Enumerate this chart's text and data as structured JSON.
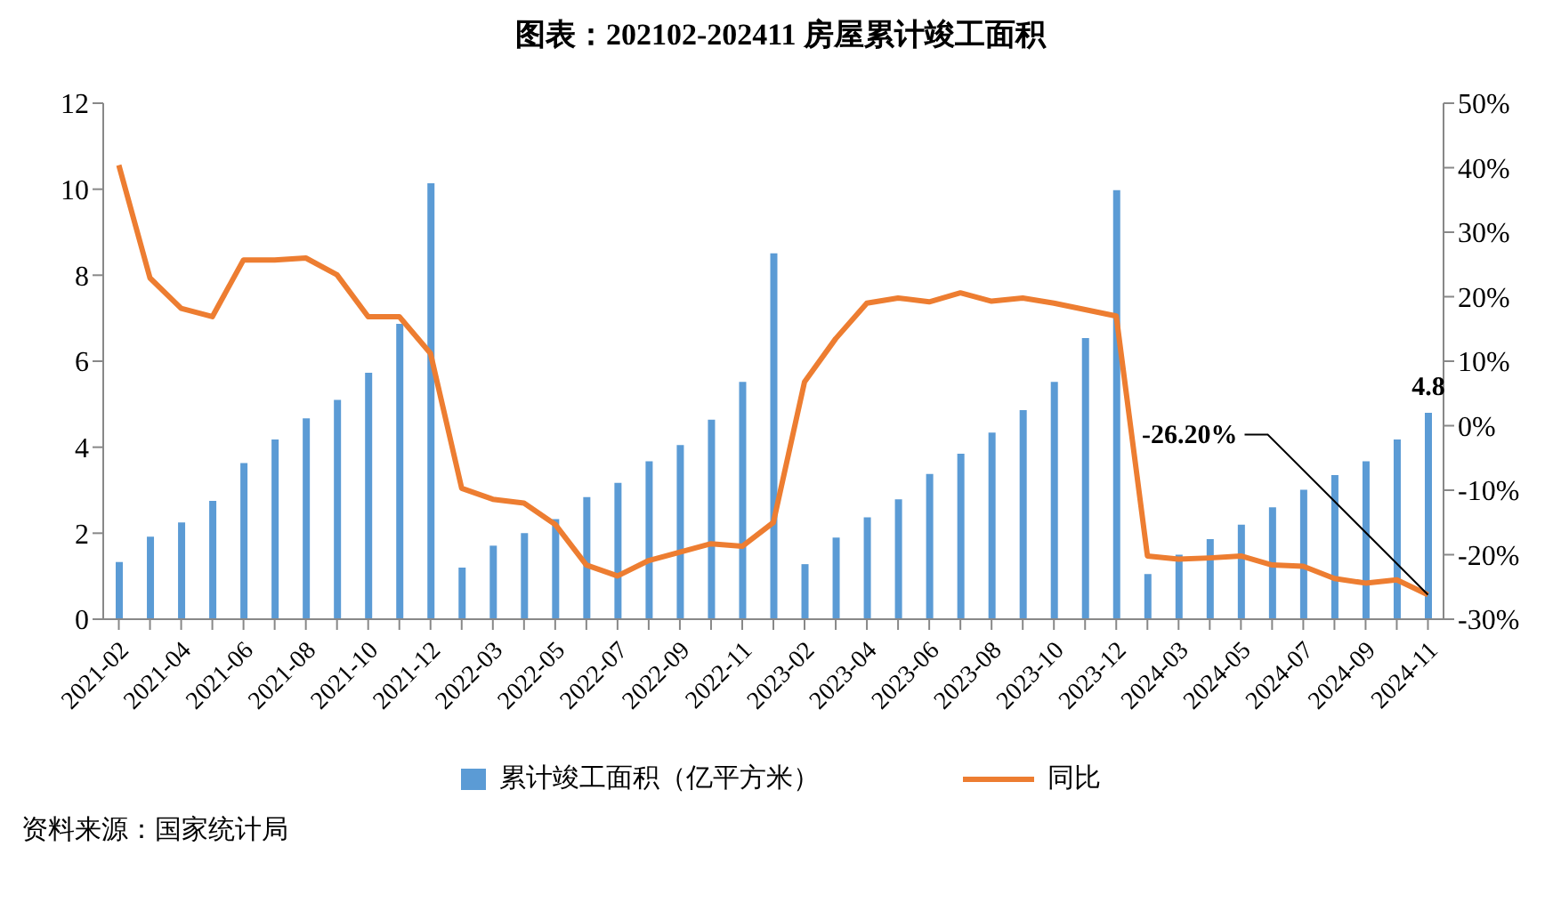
{
  "chart_data": {
    "type": "bar",
    "title": "图表：202102-202411 房屋累计竣工面积",
    "categories": [
      "2021-02",
      null,
      "2021-04",
      null,
      "2021-06",
      null,
      "2021-08",
      null,
      "2021-10",
      null,
      "2021-12",
      null,
      "2022-03",
      null,
      "2022-05",
      null,
      "2022-07",
      null,
      "2022-09",
      null,
      "2022-11",
      null,
      "2023-02",
      null,
      "2023-04",
      null,
      "2023-06",
      null,
      "2023-08",
      null,
      "2023-10",
      null,
      "2023-12",
      null,
      "2024-03",
      null,
      "2024-05",
      null,
      "2024-07",
      null,
      "2024-09",
      null,
      "2024-11"
    ],
    "series": [
      {
        "name": "累计竣工面积（亿平方米）",
        "color": "#5b9bd5",
        "values": [
          1.33,
          1.92,
          2.25,
          2.75,
          3.63,
          4.18,
          4.67,
          5.1,
          5.73,
          6.87,
          10.14,
          1.2,
          1.71,
          2.0,
          2.33,
          2.84,
          3.17,
          3.67,
          4.05,
          4.64,
          5.52,
          8.51,
          1.28,
          1.9,
          2.37,
          2.79,
          3.38,
          3.85,
          4.34,
          4.86,
          5.52,
          6.54,
          9.98,
          1.05,
          1.5,
          1.86,
          2.2,
          2.6,
          3.01,
          3.35,
          3.67,
          4.18,
          4.8
        ],
        "value_labels": [
          null,
          null,
          null,
          null,
          null,
          null,
          null,
          null,
          null,
          null,
          null,
          null,
          null,
          null,
          null,
          null,
          null,
          null,
          null,
          null,
          null,
          null,
          null,
          null,
          null,
          null,
          null,
          null,
          null,
          null,
          null,
          null,
          null,
          null,
          null,
          null,
          null,
          null,
          null,
          null,
          null,
          null,
          "4.8"
        ]
      },
      {
        "name": "同比",
        "type": "line",
        "axis": "y2",
        "color": "#ed7d31",
        "values": [
          40.4,
          22.9,
          18.2,
          16.9,
          25.7,
          25.7,
          26.0,
          23.4,
          16.9,
          16.9,
          11.2,
          -9.7,
          -11.4,
          -12.0,
          -15.3,
          -21.6,
          -23.3,
          -20.9,
          -19.6,
          -18.3,
          -18.7,
          -15.0,
          6.8,
          13.5,
          19.0,
          19.8,
          19.2,
          20.6,
          19.3,
          19.8,
          19.0,
          18.0,
          17.0,
          -20.2,
          -20.7,
          -20.5,
          -20.2,
          -21.6,
          -21.8,
          -23.7,
          -24.4,
          -23.9,
          -26.2
        ],
        "value_labels": [
          null,
          null,
          null,
          null,
          null,
          null,
          null,
          null,
          null,
          null,
          null,
          null,
          null,
          null,
          null,
          null,
          null,
          null,
          null,
          null,
          null,
          null,
          null,
          null,
          null,
          null,
          null,
          null,
          null,
          null,
          null,
          null,
          null,
          null,
          null,
          null,
          null,
          null,
          null,
          null,
          null,
          null,
          "-26.20%"
        ]
      }
    ],
    "ylim": [
      0,
      12
    ],
    "yticks": [
      0,
      2,
      4,
      6,
      8,
      10,
      12
    ],
    "y2lim": [
      -30,
      50
    ],
    "y2ticks": [
      {
        "value": -30,
        "label": "-30%"
      },
      {
        "value": -20,
        "label": "-20%"
      },
      {
        "value": -10,
        "label": "-10%"
      },
      {
        "value": 0,
        "label": "0%"
      },
      {
        "value": 10,
        "label": "10%"
      },
      {
        "value": 20,
        "label": "20%"
      },
      {
        "value": 30,
        "label": "30%"
      },
      {
        "value": 40,
        "label": "40%"
      },
      {
        "value": 50,
        "label": "50%"
      }
    ],
    "grid": false,
    "legend": "bottom",
    "marker": "none",
    "line_style": "solid",
    "annotations": [
      "资料来源：国家统计局"
    ]
  }
}
